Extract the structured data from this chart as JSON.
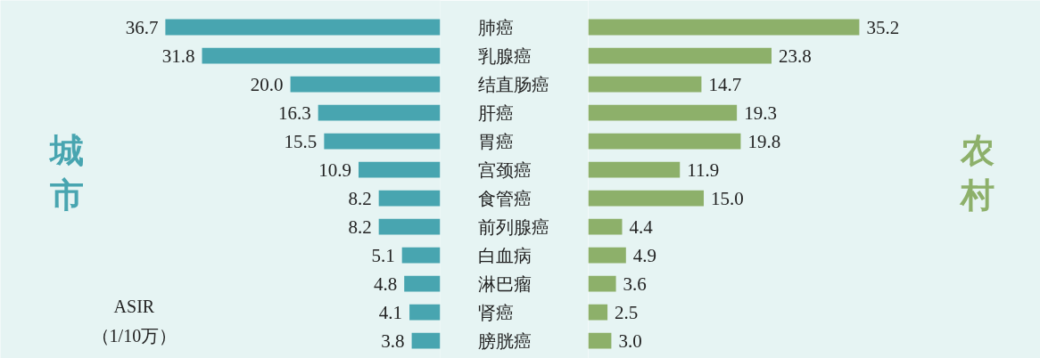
{
  "chart_data": [
    {
      "type": "bar",
      "orientation": "horizontal",
      "tick_labels": "y",
      "categories": [
        "肺癌",
        "乳腺癌",
        "结直肠癌",
        "肝癌",
        "胃癌",
        "宫颈癌",
        "食管癌",
        "前列腺癌",
        "白血病",
        "淋巴瘤",
        "肾癌",
        "膀胱癌"
      ],
      "series": [
        {
          "name": "城市",
          "color": "#48a5b0",
          "values": [
            36.7,
            31.8,
            20.0,
            16.3,
            15.5,
            10.9,
            8.2,
            8.2,
            5.1,
            4.8,
            4.1,
            3.8
          ],
          "value_labels": [
            "36.7",
            "31.8",
            "20.0",
            "16.3",
            "15.5",
            "10.9",
            "8.2",
            "8.2",
            "5.1",
            "4.8",
            "4.1",
            "3.8"
          ]
        }
      ],
      "annotations": [
        "ASIR\n（1/10万）"
      ]
    },
    {
      "type": "bar",
      "orientation": "horizontal",
      "tick_labels": false,
      "series": [
        {
          "name": "农村",
          "color": "#8db06a",
          "values": [
            35.2,
            23.8,
            14.7,
            19.3,
            19.8,
            11.9,
            15.0,
            4.4,
            4.9,
            3.6,
            2.5,
            3.0
          ],
          "value_labels": [
            "35.2",
            "23.8",
            "14.7",
            "19.3",
            "19.8",
            "11.9",
            "15.0",
            "4.4",
            "4.9",
            "3.6",
            "2.5",
            "3.0"
          ]
        }
      ]
    }
  ]
}
